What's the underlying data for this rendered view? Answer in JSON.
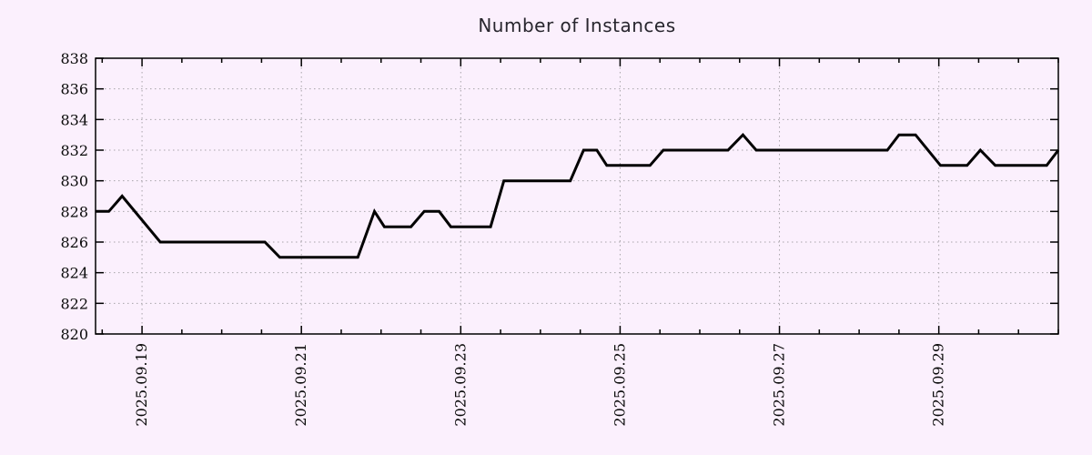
{
  "title": "Number of Instances",
  "colors": {
    "background": "#fbf0fd",
    "line": "#000000",
    "grid": "#a8a4aa",
    "axis": "#000000",
    "title_color": "#28262e",
    "label_color": "#0a0a0a"
  },
  "chart_data": {
    "type": "line",
    "title": "Number of Instances",
    "series_name": "instances",
    "x_type": "datetime",
    "x_range": [
      "2025-09-18 10:00",
      "2025-09-30 12:00"
    ],
    "ylim": [
      820,
      838
    ],
    "y_ticks": [
      820,
      822,
      824,
      826,
      828,
      830,
      832,
      834,
      836,
      838
    ],
    "x_ticks": [
      {
        "t": "2025-09-19 00:00",
        "label": "2025.09.19"
      },
      {
        "t": "2025-09-21 00:00",
        "label": "2025.09.21"
      },
      {
        "t": "2025-09-23 00:00",
        "label": "2025.09.23"
      },
      {
        "t": "2025-09-25 00:00",
        "label": "2025.09.25"
      },
      {
        "t": "2025-09-27 00:00",
        "label": "2025.09.27"
      },
      {
        "t": "2025-09-29 00:00",
        "label": "2025.09.29"
      }
    ],
    "minor_tick_interval_hours": 12,
    "grid": true,
    "legend": false,
    "points": [
      [
        "2025-09-18 10:00",
        828
      ],
      [
        "2025-09-18 14:00",
        828
      ],
      [
        "2025-09-18 18:00",
        829
      ],
      [
        "2025-09-19 05:30",
        826
      ],
      [
        "2025-09-20 13:00",
        826
      ],
      [
        "2025-09-20 17:30",
        825
      ],
      [
        "2025-09-21 17:00",
        825
      ],
      [
        "2025-09-21 22:00",
        828
      ],
      [
        "2025-09-22 01:00",
        827
      ],
      [
        "2025-09-22 09:00",
        827
      ],
      [
        "2025-09-22 13:00",
        828
      ],
      [
        "2025-09-22 17:30",
        828
      ],
      [
        "2025-09-22 21:00",
        827
      ],
      [
        "2025-09-23 09:00",
        827
      ],
      [
        "2025-09-23 13:00",
        830
      ],
      [
        "2025-09-24 09:00",
        830
      ],
      [
        "2025-09-24 13:00",
        832
      ],
      [
        "2025-09-24 17:00",
        832
      ],
      [
        "2025-09-24 20:00",
        831
      ],
      [
        "2025-09-25 09:00",
        831
      ],
      [
        "2025-09-25 13:00",
        832
      ],
      [
        "2025-09-26 08:30",
        832
      ],
      [
        "2025-09-26 13:00",
        833
      ],
      [
        "2025-09-26 17:00",
        832
      ],
      [
        "2025-09-28 08:30",
        832
      ],
      [
        "2025-09-28 12:00",
        833
      ],
      [
        "2025-09-28 17:00",
        833
      ],
      [
        "2025-09-29 00:30",
        831
      ],
      [
        "2025-09-29 08:30",
        831
      ],
      [
        "2025-09-29 12:30",
        832
      ],
      [
        "2025-09-29 17:00",
        831
      ],
      [
        "2025-09-30 08:30",
        831
      ],
      [
        "2025-09-30 12:00",
        832
      ]
    ]
  }
}
